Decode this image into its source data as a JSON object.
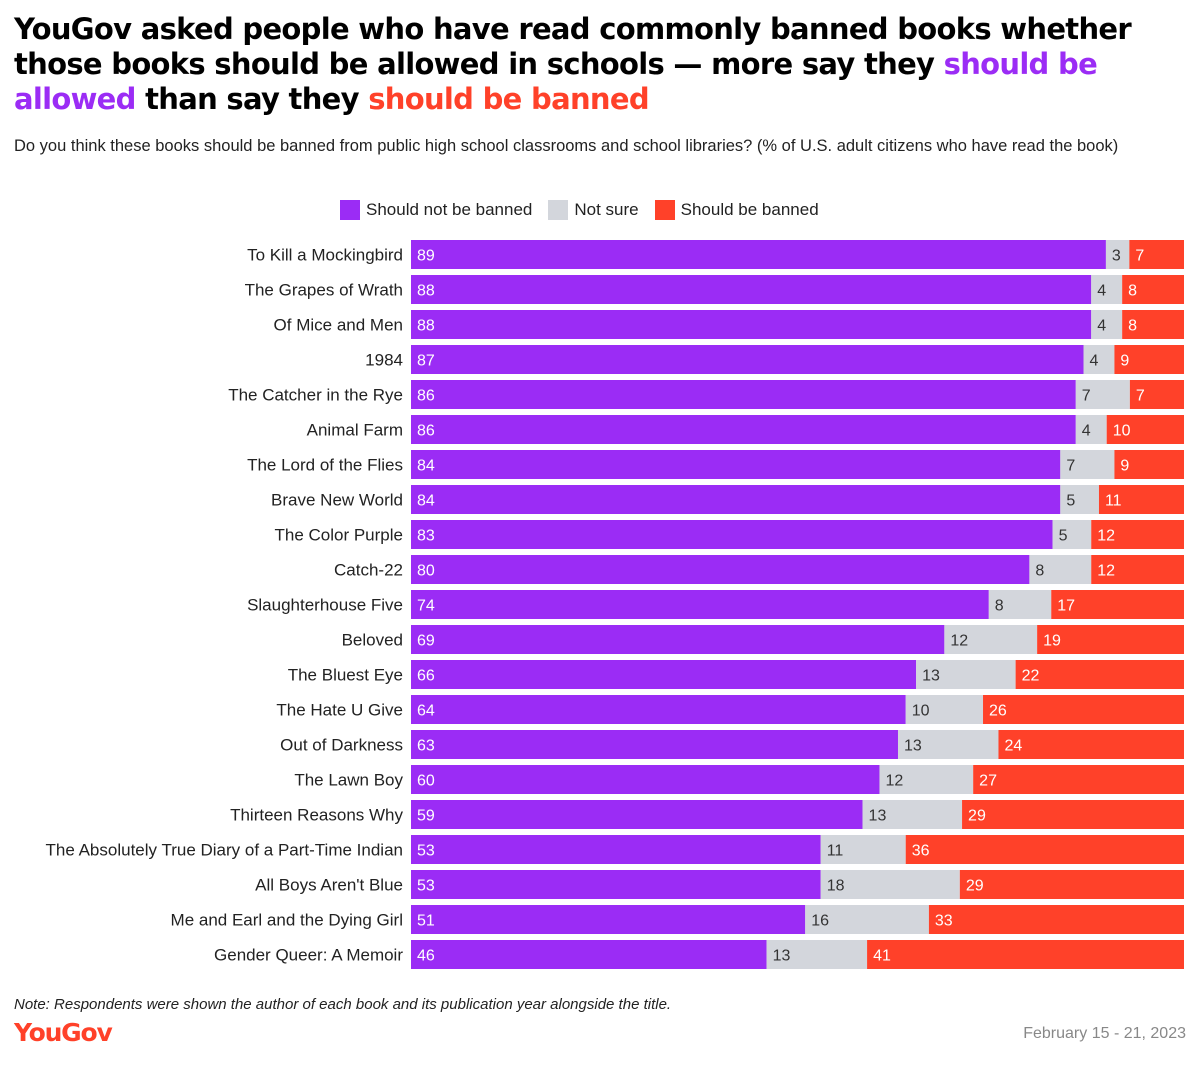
{
  "title": {
    "part1": "YouGov asked people who have read commonly banned books whether those books should be allowed in schools — more say they ",
    "hl_allowed": "should be allowed",
    "part2": " than say they ",
    "hl_banned": "should be banned"
  },
  "subtitle": "Do you think these books should be banned from public high school classrooms and school libraries? (% of U.S. adult citizens who have read the book)",
  "colors": {
    "not_banned": "#9b2cf5",
    "not_sure": "#d3d6dc",
    "banned": "#ff4129",
    "title_allowed": "#9b2cf5",
    "title_banned": "#ff4129"
  },
  "chart_data": {
    "type": "bar",
    "orientation": "horizontal",
    "stacked": true,
    "categories": [
      "To Kill a Mockingbird",
      "The Grapes of Wrath",
      "Of Mice and Men",
      "1984",
      "The Catcher in the Rye",
      "Animal Farm",
      "The Lord of the Flies",
      "Brave New World",
      "The Color Purple",
      "Catch-22",
      "Slaughterhouse Five",
      "Beloved",
      "The Bluest Eye",
      "The Hate U Give",
      "Out of Darkness",
      "The Lawn Boy",
      "Thirteen Reasons Why",
      "The Absolutely True Diary of a Part-Time Indian",
      "All Boys Aren't Blue",
      "Me and Earl and the Dying Girl",
      "Gender Queer: A Memoir"
    ],
    "series": [
      {
        "name": "Should not be banned",
        "color": "#9b2cf5",
        "values": [
          89,
          88,
          88,
          87,
          86,
          86,
          84,
          84,
          83,
          80,
          74,
          69,
          66,
          64,
          63,
          60,
          59,
          53,
          53,
          51,
          46
        ]
      },
      {
        "name": "Not sure",
        "color": "#d3d6dc",
        "values": [
          3,
          4,
          4,
          4,
          7,
          4,
          7,
          5,
          5,
          8,
          8,
          12,
          13,
          10,
          13,
          12,
          13,
          11,
          18,
          16,
          13
        ]
      },
      {
        "name": "Should be banned",
        "color": "#ff4129",
        "values": [
          7,
          8,
          8,
          9,
          7,
          10,
          9,
          11,
          12,
          12,
          17,
          19,
          22,
          26,
          24,
          27,
          29,
          36,
          29,
          33,
          41
        ]
      }
    ],
    "xlim": [
      0,
      100
    ],
    "legend_position": "top-center",
    "grid": false
  },
  "note": "Note: Respondents were shown the author of each book and its publication year alongside the title.",
  "logo_text": "YouGov",
  "date": "February 15 - 21, 2023"
}
